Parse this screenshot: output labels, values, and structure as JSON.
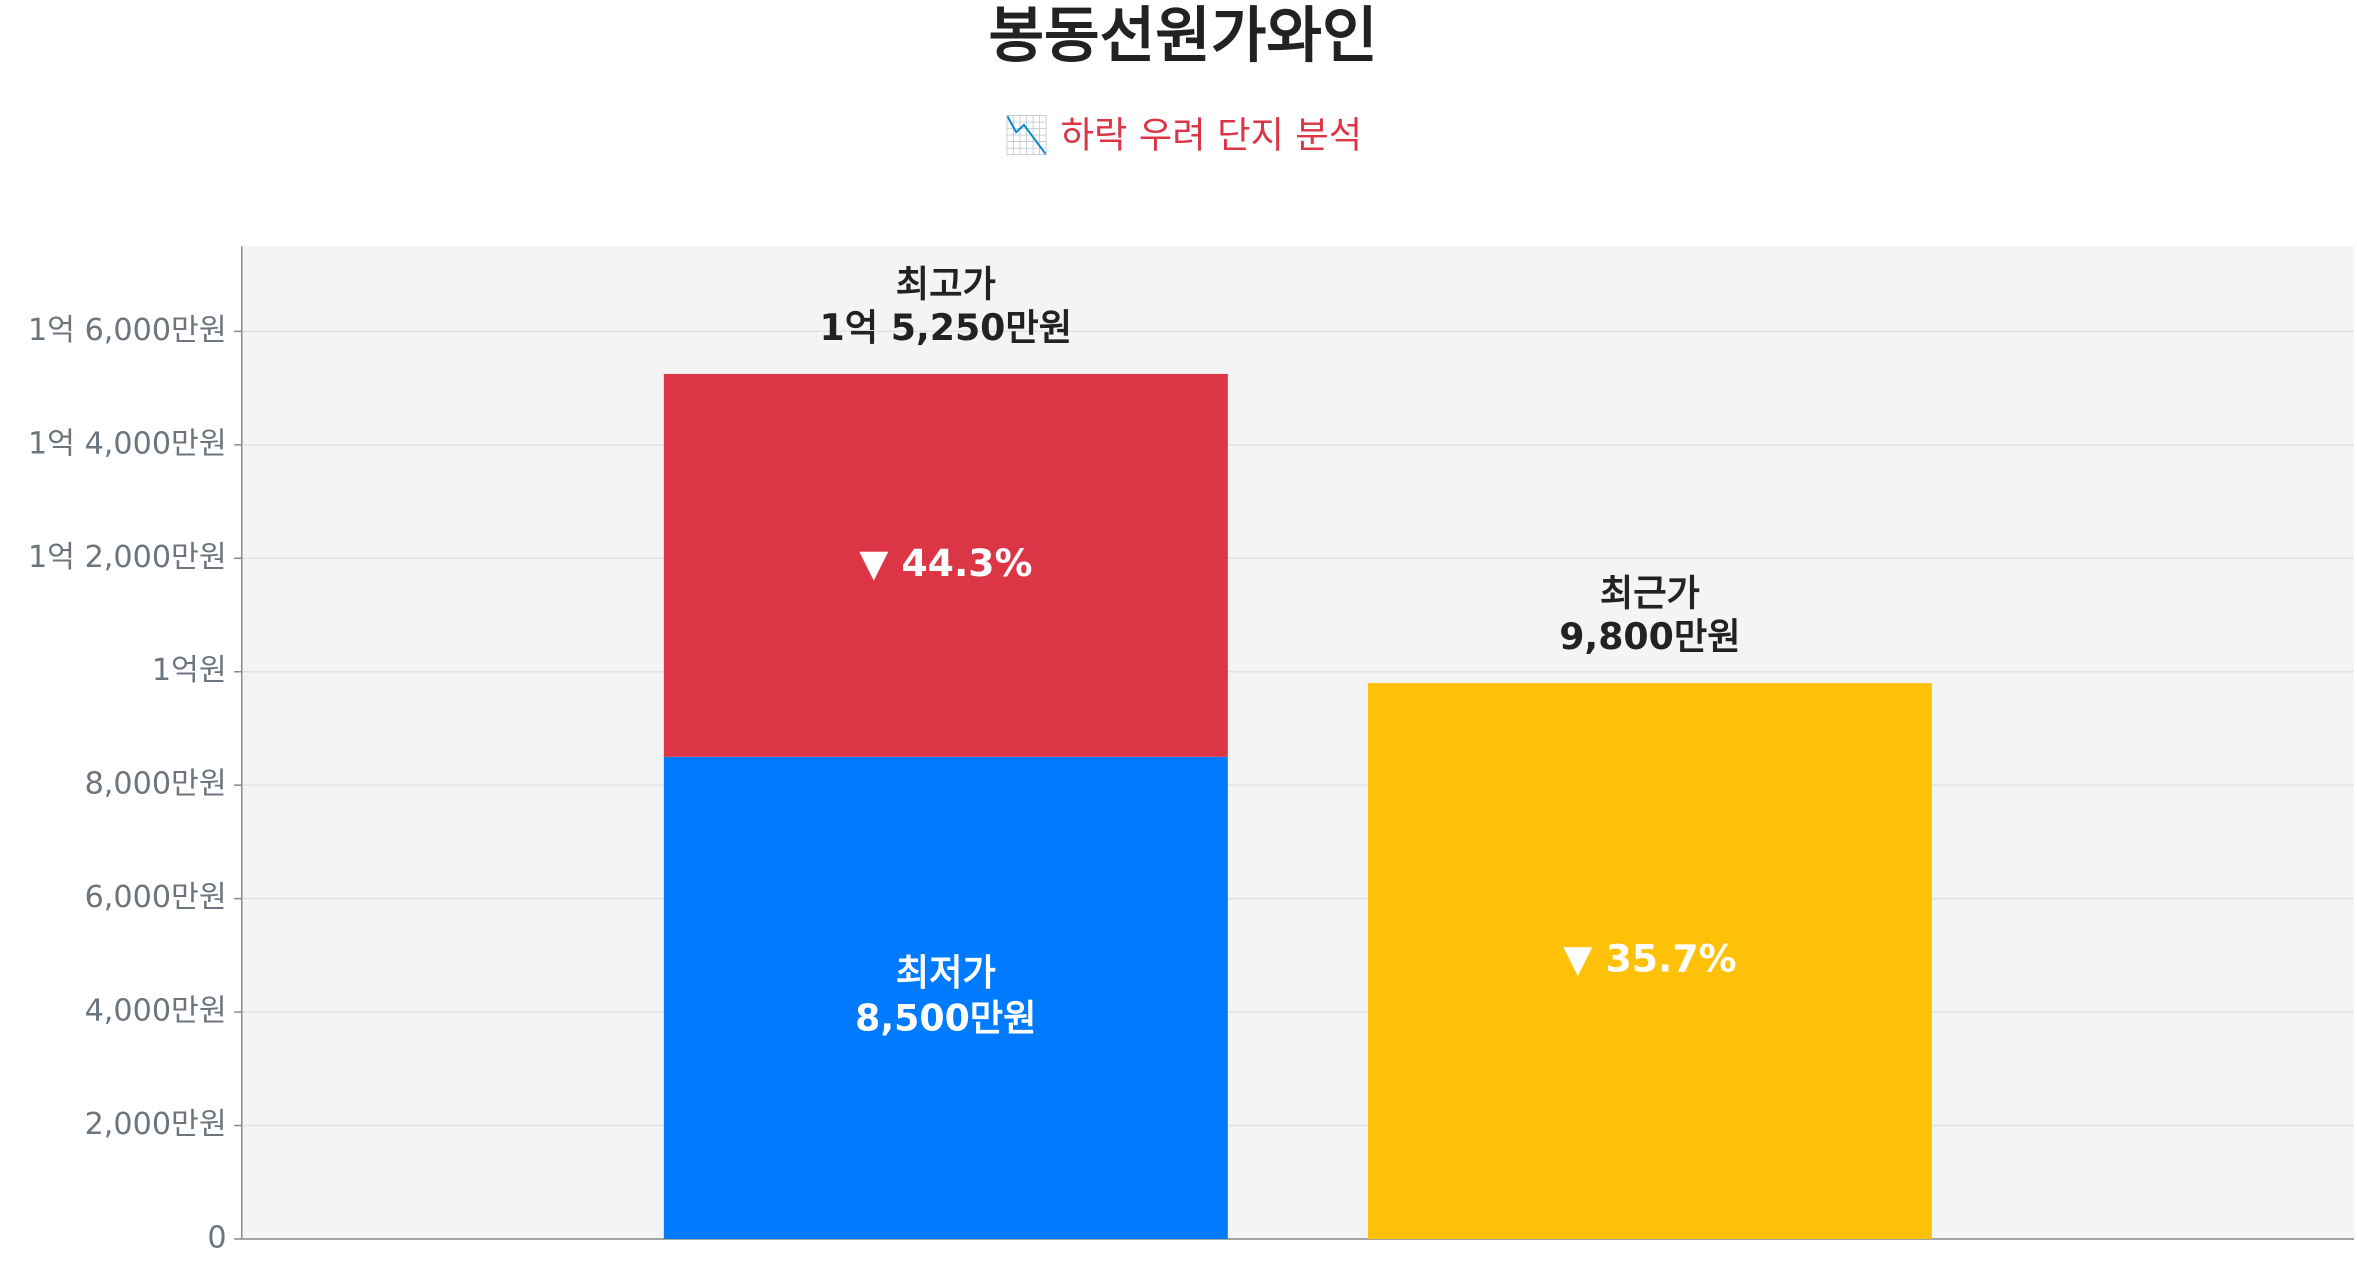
{
  "chart_data": {
    "type": "bar",
    "title": "봉동선원가와인",
    "subtitle": "📉 하락 우려 단지 분석",
    "series": [
      {
        "name": "최저가",
        "color": "#007bff",
        "values": [
          8500,
          null
        ],
        "value_labels": [
          "8,500만원",
          null
        ]
      },
      {
        "color": "#dc3545",
        "values": [
          6750,
          null
        ]
      },
      {
        "color": "#ffc107",
        "values": [
          null,
          9800
        ]
      }
    ],
    "top_labels": [
      {
        "name": "최고가",
        "value": 15250,
        "label": "1억 5,250만원"
      },
      {
        "name": "최근가",
        "value": 9800,
        "label": "9,800만원"
      }
    ],
    "drops": [
      {
        "value": 44.3,
        "label": "▼ 44.3%"
      },
      {
        "value": 35.7,
        "label": "▼ 35.7%"
      }
    ],
    "ylim": [
      0,
      17500
    ],
    "yticks": [
      0,
      {
        "value": 2000,
        "label": "2,000만원"
      },
      {
        "value": 4000,
        "label": "4,000만원"
      },
      {
        "value": 6000,
        "label": "6,000만원"
      },
      {
        "value": 8000,
        "label": "8,000만원"
      },
      {
        "value": 10000,
        "label": "1억원"
      },
      {
        "value": 12000,
        "label": "1억 2,000만원"
      },
      {
        "value": 14000,
        "label": "1억 4,000만원"
      },
      {
        "value": 16000,
        "label": "1억 6,000만원"
      }
    ],
    "grid": true
  }
}
